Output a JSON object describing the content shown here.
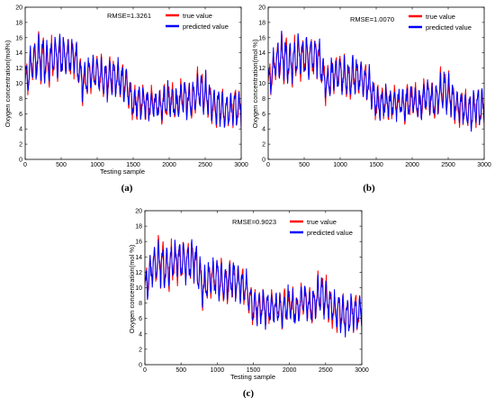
{
  "chart_data": [
    {
      "type": "line",
      "panel_label": "(a)",
      "annotation": "RMSE=1.3261",
      "xlabel": "Testing sample",
      "ylabel": "Oxygen concentration(mol%)",
      "xlim": [
        0,
        3000
      ],
      "ylim": [
        0,
        20
      ],
      "xticks": [
        0,
        500,
        1000,
        1500,
        2000,
        2500,
        3000
      ],
      "yticks": [
        0,
        2,
        4,
        6,
        8,
        10,
        12,
        14,
        16,
        18,
        20
      ],
      "grid": false,
      "legend_position": "top-right",
      "series": [
        {
          "name": "true value",
          "color": "#ff0000",
          "role": "true"
        },
        {
          "name": "predicted value",
          "color": "#0000ff",
          "role": "predicted"
        }
      ],
      "envelope": {
        "x": [
          0,
          100,
          200,
          300,
          400,
          500,
          600,
          700,
          800,
          900,
          1000,
          1100,
          1200,
          1300,
          1400,
          1500,
          1600,
          1700,
          1800,
          1900,
          2000,
          2100,
          2200,
          2300,
          2400,
          2500,
          2600,
          2700,
          2800,
          2900,
          3000
        ],
        "y_center": [
          10.0,
          12.8,
          13.6,
          12.5,
          13.6,
          13.5,
          13.4,
          13.6,
          9.8,
          11.2,
          11.3,
          10.6,
          11.0,
          10.5,
          9.8,
          7.3,
          7.5,
          7.2,
          7.4,
          7.2,
          8.0,
          7.0,
          8.5,
          7.3,
          9.0,
          8.7,
          7.2,
          6.8,
          6.2,
          6.8,
          7.0
        ],
        "y_amplitude": [
          2.5,
          2.5,
          3.2,
          3.0,
          2.6,
          3.0,
          2.6,
          2.6,
          2.6,
          2.4,
          2.4,
          2.8,
          2.8,
          2.5,
          2.4,
          2.2,
          2.2,
          2.2,
          2.0,
          2.4,
          2.2,
          2.0,
          2.4,
          2.2,
          2.7,
          2.8,
          2.2,
          2.4,
          2.5,
          2.6,
          2.5
        ]
      }
    },
    {
      "type": "line",
      "panel_label": "(b)",
      "annotation": "RMSE=1.0070",
      "xlabel": "",
      "ylabel": "Oxygen concentration(mol %)",
      "xlim": [
        0,
        3000
      ],
      "ylim": [
        0,
        20
      ],
      "xticks": [
        0,
        500,
        1000,
        1500,
        2000,
        2500,
        3000
      ],
      "yticks": [
        0,
        2,
        4,
        6,
        8,
        10,
        12,
        14,
        16,
        18,
        20
      ],
      "grid": false,
      "legend_position": "top-right",
      "series": [
        {
          "name": "true value",
          "color": "#ff0000",
          "role": "true"
        },
        {
          "name": "predicted value",
          "color": "#0000ff",
          "role": "predicted"
        }
      ],
      "envelope": {
        "x": [
          0,
          100,
          200,
          300,
          400,
          500,
          600,
          700,
          800,
          900,
          1000,
          1100,
          1200,
          1300,
          1400,
          1500,
          1600,
          1700,
          1800,
          1900,
          2000,
          2100,
          2200,
          2300,
          2400,
          2500,
          2600,
          2700,
          2800,
          2900,
          3000
        ],
        "y_center": [
          10.0,
          12.8,
          13.6,
          12.5,
          13.6,
          13.5,
          13.4,
          13.6,
          9.8,
          11.2,
          11.3,
          10.6,
          11.0,
          10.5,
          9.8,
          7.3,
          7.5,
          7.2,
          7.4,
          7.2,
          8.0,
          7.0,
          8.5,
          7.3,
          9.0,
          8.7,
          7.2,
          6.8,
          6.2,
          6.8,
          7.0
        ],
        "y_amplitude": [
          2.5,
          2.5,
          3.2,
          3.0,
          2.6,
          3.0,
          2.6,
          2.6,
          2.6,
          2.4,
          2.4,
          2.8,
          2.8,
          2.5,
          2.4,
          2.2,
          2.2,
          2.2,
          2.0,
          2.4,
          2.2,
          2.0,
          2.4,
          2.2,
          2.7,
          2.8,
          2.2,
          2.4,
          2.5,
          2.6,
          2.5
        ]
      }
    },
    {
      "type": "line",
      "panel_label": "(c)",
      "annotation": "RMSE=0.9023",
      "xlabel": "Testing sample",
      "ylabel": "Oxygen concentration(mol %)",
      "xlim": [
        0,
        3000
      ],
      "ylim": [
        0,
        20
      ],
      "xticks": [
        0,
        500,
        1000,
        1500,
        2000,
        2500,
        3000
      ],
      "yticks": [
        0,
        2,
        4,
        6,
        8,
        10,
        12,
        14,
        16,
        18,
        20
      ],
      "grid": false,
      "legend_position": "top-right",
      "series": [
        {
          "name": "true value",
          "color": "#ff0000",
          "role": "true"
        },
        {
          "name": "predicted value",
          "color": "#0000ff",
          "role": "predicted"
        }
      ],
      "envelope": {
        "x": [
          0,
          100,
          200,
          300,
          400,
          500,
          600,
          700,
          800,
          900,
          1000,
          1100,
          1200,
          1300,
          1400,
          1500,
          1600,
          1700,
          1800,
          1900,
          2000,
          2100,
          2200,
          2300,
          2400,
          2500,
          2600,
          2700,
          2800,
          2900,
          3000
        ],
        "y_center": [
          10.0,
          12.8,
          13.6,
          12.5,
          13.6,
          13.5,
          13.4,
          13.6,
          9.8,
          11.2,
          11.3,
          10.6,
          11.0,
          10.5,
          9.8,
          7.3,
          7.5,
          7.2,
          7.4,
          7.2,
          8.0,
          7.0,
          8.5,
          7.3,
          9.0,
          8.7,
          7.2,
          6.8,
          6.2,
          6.8,
          7.0
        ],
        "y_amplitude": [
          2.5,
          2.5,
          3.2,
          3.0,
          2.6,
          3.0,
          2.6,
          2.6,
          2.6,
          2.4,
          2.4,
          2.8,
          2.8,
          2.5,
          2.4,
          2.2,
          2.2,
          2.2,
          2.0,
          2.4,
          2.2,
          2.0,
          2.4,
          2.2,
          2.7,
          2.8,
          2.2,
          2.4,
          2.5,
          2.6,
          2.5
        ]
      }
    }
  ]
}
